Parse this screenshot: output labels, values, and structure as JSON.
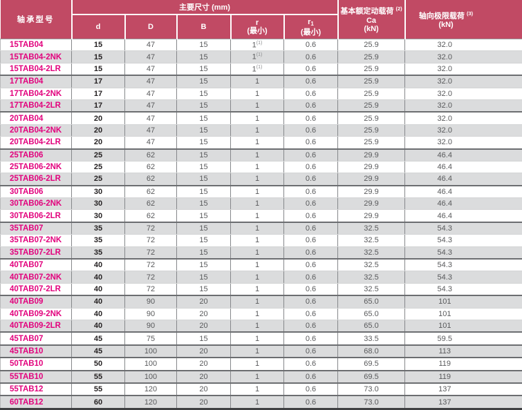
{
  "header": {
    "model": "轴承型号",
    "main_dims": "主要尺寸 (mm)",
    "col_d": "d",
    "col_D": "D",
    "col_B": "B",
    "r_sym": "r",
    "r_min": "(最小)",
    "r1_sym": "r",
    "r1_sub": "1",
    "r1_min": "(最小)",
    "dyn_title": "基本额定动载荷",
    "dyn_sup": "(2)",
    "dyn_sym": "Ca",
    "dyn_unit": "(kN)",
    "axial_title": "轴向极限载荷",
    "axial_sup": "(3)",
    "axial_unit": "(kN)"
  },
  "colors": {
    "header_bg": "#c14a64",
    "header_text": "#ffffff",
    "model_text": "#e2027d",
    "stripe_gray": "#dbdcdd",
    "value_text": "#58595b",
    "bold_value_text": "#231f20"
  },
  "rows": [
    {
      "model": "15TAB04",
      "d": "15",
      "D": "47",
      "B": "15",
      "r": "1",
      "r_note": "(1)",
      "r1": "0.6",
      "ca": "25.9",
      "axial": "32.0",
      "sep": false
    },
    {
      "model": "15TAB04-2NK",
      "d": "15",
      "D": "47",
      "B": "15",
      "r": "1",
      "r_note": "(1)",
      "r1": "0.6",
      "ca": "25.9",
      "axial": "32.0",
      "sep": false
    },
    {
      "model": "15TAB04-2LR",
      "d": "15",
      "D": "47",
      "B": "15",
      "r": "1",
      "r_note": "(1)",
      "r1": "0.6",
      "ca": "25.9",
      "axial": "32.0",
      "sep": true
    },
    {
      "model": "17TAB04",
      "d": "17",
      "D": "47",
      "B": "15",
      "r": "1",
      "r_note": "",
      "r1": "0.6",
      "ca": "25.9",
      "axial": "32.0",
      "sep": false
    },
    {
      "model": "17TAB04-2NK",
      "d": "17",
      "D": "47",
      "B": "15",
      "r": "1",
      "r_note": "",
      "r1": "0.6",
      "ca": "25.9",
      "axial": "32.0",
      "sep": false
    },
    {
      "model": "17TAB04-2LR",
      "d": "17",
      "D": "47",
      "B": "15",
      "r": "1",
      "r_note": "",
      "r1": "0.6",
      "ca": "25.9",
      "axial": "32.0",
      "sep": true
    },
    {
      "model": "20TAB04",
      "d": "20",
      "D": "47",
      "B": "15",
      "r": "1",
      "r_note": "",
      "r1": "0.6",
      "ca": "25.9",
      "axial": "32.0",
      "sep": false
    },
    {
      "model": "20TAB04-2NK",
      "d": "20",
      "D": "47",
      "B": "15",
      "r": "1",
      "r_note": "",
      "r1": "0.6",
      "ca": "25.9",
      "axial": "32.0",
      "sep": false
    },
    {
      "model": "20TAB04-2LR",
      "d": "20",
      "D": "47",
      "B": "15",
      "r": "1",
      "r_note": "",
      "r1": "0.6",
      "ca": "25.9",
      "axial": "32.0",
      "sep": true
    },
    {
      "model": "25TAB06",
      "d": "25",
      "D": "62",
      "B": "15",
      "r": "1",
      "r_note": "",
      "r1": "0.6",
      "ca": "29.9",
      "axial": "46.4",
      "sep": false
    },
    {
      "model": "25TAB06-2NK",
      "d": "25",
      "D": "62",
      "B": "15",
      "r": "1",
      "r_note": "",
      "r1": "0.6",
      "ca": "29.9",
      "axial": "46.4",
      "sep": false
    },
    {
      "model": "25TAB06-2LR",
      "d": "25",
      "D": "62",
      "B": "15",
      "r": "1",
      "r_note": "",
      "r1": "0.6",
      "ca": "29.9",
      "axial": "46.4",
      "sep": true
    },
    {
      "model": "30TAB06",
      "d": "30",
      "D": "62",
      "B": "15",
      "r": "1",
      "r_note": "",
      "r1": "0.6",
      "ca": "29.9",
      "axial": "46.4",
      "sep": false
    },
    {
      "model": "30TAB06-2NK",
      "d": "30",
      "D": "62",
      "B": "15",
      "r": "1",
      "r_note": "",
      "r1": "0.6",
      "ca": "29.9",
      "axial": "46.4",
      "sep": false
    },
    {
      "model": "30TAB06-2LR",
      "d": "30",
      "D": "62",
      "B": "15",
      "r": "1",
      "r_note": "",
      "r1": "0.6",
      "ca": "29.9",
      "axial": "46.4",
      "sep": true
    },
    {
      "model": "35TAB07",
      "d": "35",
      "D": "72",
      "B": "15",
      "r": "1",
      "r_note": "",
      "r1": "0.6",
      "ca": "32.5",
      "axial": "54.3",
      "sep": false
    },
    {
      "model": "35TAB07-2NK",
      "d": "35",
      "D": "72",
      "B": "15",
      "r": "1",
      "r_note": "",
      "r1": "0.6",
      "ca": "32.5",
      "axial": "54.3",
      "sep": false
    },
    {
      "model": "35TAB07-2LR",
      "d": "35",
      "D": "72",
      "B": "15",
      "r": "1",
      "r_note": "",
      "r1": "0.6",
      "ca": "32.5",
      "axial": "54.3",
      "sep": true
    },
    {
      "model": "40TAB07",
      "d": "40",
      "D": "72",
      "B": "15",
      "r": "1",
      "r_note": "",
      "r1": "0.6",
      "ca": "32.5",
      "axial": "54.3",
      "sep": false
    },
    {
      "model": "40TAB07-2NK",
      "d": "40",
      "D": "72",
      "B": "15",
      "r": "1",
      "r_note": "",
      "r1": "0.6",
      "ca": "32.5",
      "axial": "54.3",
      "sep": false
    },
    {
      "model": "40TAB07-2LR",
      "d": "40",
      "D": "72",
      "B": "15",
      "r": "1",
      "r_note": "",
      "r1": "0.6",
      "ca": "32.5",
      "axial": "54.3",
      "sep": true
    },
    {
      "model": "40TAB09",
      "d": "40",
      "D": "90",
      "B": "20",
      "r": "1",
      "r_note": "",
      "r1": "0.6",
      "ca": "65.0",
      "axial": "101",
      "sep": false
    },
    {
      "model": "40TAB09-2NK",
      "d": "40",
      "D": "90",
      "B": "20",
      "r": "1",
      "r_note": "",
      "r1": "0.6",
      "ca": "65.0",
      "axial": "101",
      "sep": false
    },
    {
      "model": "40TAB09-2LR",
      "d": "40",
      "D": "90",
      "B": "20",
      "r": "1",
      "r_note": "",
      "r1": "0.6",
      "ca": "65.0",
      "axial": "101",
      "sep": true
    },
    {
      "model": "45TAB07",
      "d": "45",
      "D": "75",
      "B": "15",
      "r": "1",
      "r_note": "",
      "r1": "0.6",
      "ca": "33.5",
      "axial": "59.5",
      "sep": true
    },
    {
      "model": "45TAB10",
      "d": "45",
      "D": "100",
      "B": "20",
      "r": "1",
      "r_note": "",
      "r1": "0.6",
      "ca": "68.0",
      "axial": "113",
      "sep": true
    },
    {
      "model": "50TAB10",
      "d": "50",
      "D": "100",
      "B": "20",
      "r": "1",
      "r_note": "",
      "r1": "0.6",
      "ca": "69.5",
      "axial": "119",
      "sep": true
    },
    {
      "model": "55TAB10",
      "d": "55",
      "D": "100",
      "B": "20",
      "r": "1",
      "r_note": "",
      "r1": "0.6",
      "ca": "69.5",
      "axial": "119",
      "sep": true
    },
    {
      "model": "55TAB12",
      "d": "55",
      "D": "120",
      "B": "20",
      "r": "1",
      "r_note": "",
      "r1": "0.6",
      "ca": "73.0",
      "axial": "137",
      "sep": true
    },
    {
      "model": "60TAB12",
      "d": "60",
      "D": "120",
      "B": "20",
      "r": "1",
      "r_note": "",
      "r1": "0.6",
      "ca": "73.0",
      "axial": "137",
      "sep": false
    }
  ]
}
